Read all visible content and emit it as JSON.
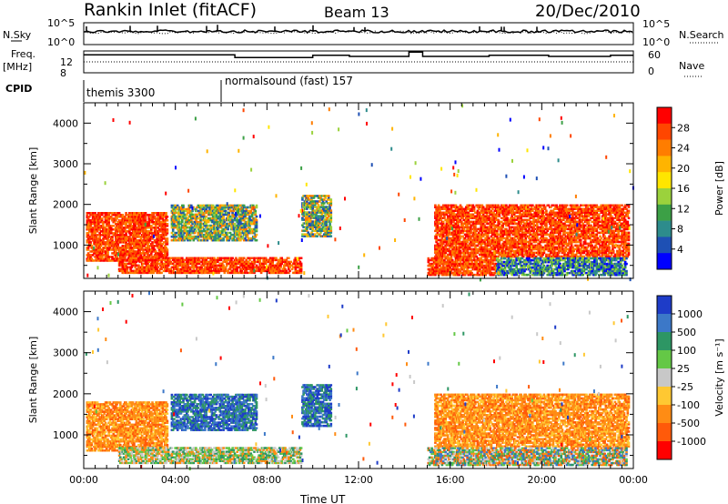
{
  "header": {
    "title": "Rankin Inlet (fitACF)",
    "beam": "Beam 13",
    "date": "20/Dec/2010"
  },
  "panels": {
    "noise": {
      "left_label": "N.Sky",
      "right_label": "N.Search",
      "left_ticks": [
        "10^5",
        "10^0"
      ],
      "right_ticks": [
        "10^5",
        "10^0"
      ]
    },
    "freq": {
      "left_label_top": "Freq.",
      "left_label_unit": "[MHz]",
      "right_label": "Nave",
      "left_ticks": [
        "12",
        "8"
      ],
      "right_ticks": [
        "60",
        "0"
      ]
    },
    "cpid": {
      "label": "CPID",
      "modes": [
        {
          "name": "themis 3300",
          "start_hour": 0
        },
        {
          "name": "normalsound (fast) 157",
          "start_hour": 6
        }
      ]
    }
  },
  "chart_data": [
    {
      "type": "heatmap",
      "name": "power",
      "ylabel": "Slant Range [km]",
      "yticks": [
        "4000",
        "3000",
        "2000",
        "1000"
      ],
      "ytick_values": [
        4000,
        3000,
        2000,
        1000
      ],
      "ylim": [
        180,
        4500
      ],
      "xlim": [
        0,
        24
      ],
      "colorbar": {
        "label": "Power [dB]",
        "ticks": [
          "28",
          "24",
          "20",
          "16",
          "12",
          "8",
          "4"
        ],
        "colors": [
          "#ff0000",
          "#ff4600",
          "#ff7d00",
          "#ffb400",
          "#ffe600",
          "#9bd23c",
          "#3ca046",
          "#2d8c8c",
          "#1e50b4",
          "#0000ff"
        ]
      },
      "regions": [
        {
          "hours": [
            0.1,
            3.6
          ],
          "ranges": [
            600,
            1800
          ],
          "level": "high"
        },
        {
          "hours": [
            1.5,
            9.5
          ],
          "ranges": [
            300,
            700
          ],
          "level": "high"
        },
        {
          "hours": [
            3.8,
            7.5
          ],
          "ranges": [
            1100,
            2000
          ],
          "level": "mid"
        },
        {
          "hours": [
            9.5,
            10.8
          ],
          "ranges": [
            1200,
            2200
          ],
          "level": "mid"
        },
        {
          "hours": [
            15.3,
            23.8
          ],
          "ranges": [
            700,
            2000
          ],
          "level": "high"
        },
        {
          "hours": [
            15.0,
            18.0
          ],
          "ranges": [
            250,
            700
          ],
          "level": "high"
        },
        {
          "hours": [
            18.0,
            23.7
          ],
          "ranges": [
            250,
            700
          ],
          "level": "low"
        }
      ]
    },
    {
      "type": "heatmap",
      "name": "velocity",
      "ylabel": "Slant Range [km]",
      "yticks": [
        "4000",
        "3000",
        "2000",
        "1000"
      ],
      "ytick_values": [
        4000,
        3000,
        2000,
        1000
      ],
      "ylim": [
        180,
        4500
      ],
      "xlim": [
        0,
        24
      ],
      "xlabel": "Time UT",
      "xticks": [
        "00:00",
        "04:00",
        "08:00",
        "12:00",
        "16:00",
        "20:00",
        "00:00"
      ],
      "colorbar": {
        "label": "Velocity [m s⁻¹]",
        "ticks": [
          "1000",
          "500",
          "100",
          "25",
          "-25",
          "-100",
          "-500",
          "-1000"
        ],
        "colors": [
          "#1e3cc8",
          "#3c78c8",
          "#2d9664",
          "#64c846",
          "#c8c8c8",
          "#ffc832",
          "#ff8c14",
          "#ff5a0a",
          "#ff0000"
        ]
      },
      "regions": [
        {
          "hours": [
            0.1,
            3.6
          ],
          "ranges": [
            600,
            1800
          ],
          "level": "neg"
        },
        {
          "hours": [
            1.5,
            9.5
          ],
          "ranges": [
            300,
            700
          ],
          "level": "zero"
        },
        {
          "hours": [
            3.8,
            7.5
          ],
          "ranges": [
            1100,
            2000
          ],
          "level": "pos"
        },
        {
          "hours": [
            9.5,
            10.8
          ],
          "ranges": [
            1200,
            2200
          ],
          "level": "pos"
        },
        {
          "hours": [
            15.3,
            23.8
          ],
          "ranges": [
            700,
            2000
          ],
          "level": "neg"
        },
        {
          "hours": [
            15.0,
            23.7
          ],
          "ranges": [
            250,
            700
          ],
          "level": "mixed"
        }
      ]
    }
  ]
}
